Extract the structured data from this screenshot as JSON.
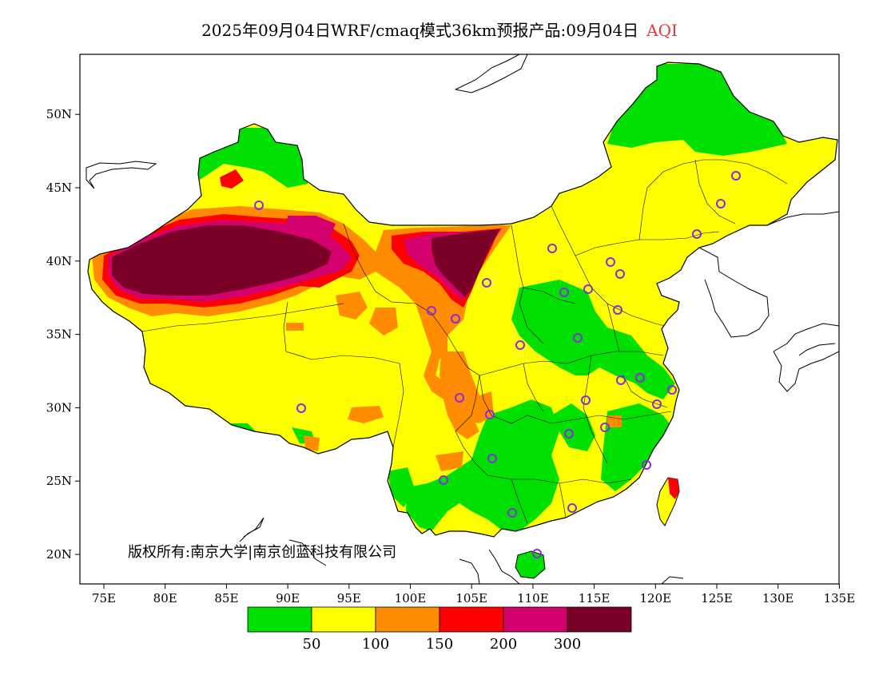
{
  "title": {
    "text": "2025年09月04日WRF/cmaq模式36km预报产品:09月04日",
    "variable": "AQI",
    "variable_color": "#e03a3a"
  },
  "copyright": "版权所有:南京大学|南京创蓝科技有限公司",
  "map": {
    "lon_ticks": [
      "75E",
      "80E",
      "85E",
      "90E",
      "95E",
      "100E",
      "105E",
      "110E",
      "115E",
      "120E",
      "125E",
      "130E",
      "135E"
    ],
    "lat_ticks": [
      "20N",
      "25N",
      "30N",
      "35N",
      "40N",
      "45N",
      "50N"
    ]
  },
  "legend": {
    "colors": [
      "#00e000",
      "#ffff00",
      "#ff8c00",
      "#ff0000",
      "#d4006e",
      "#7b0028"
    ],
    "labels": [
      "50",
      "100",
      "150",
      "200",
      "300"
    ]
  }
}
